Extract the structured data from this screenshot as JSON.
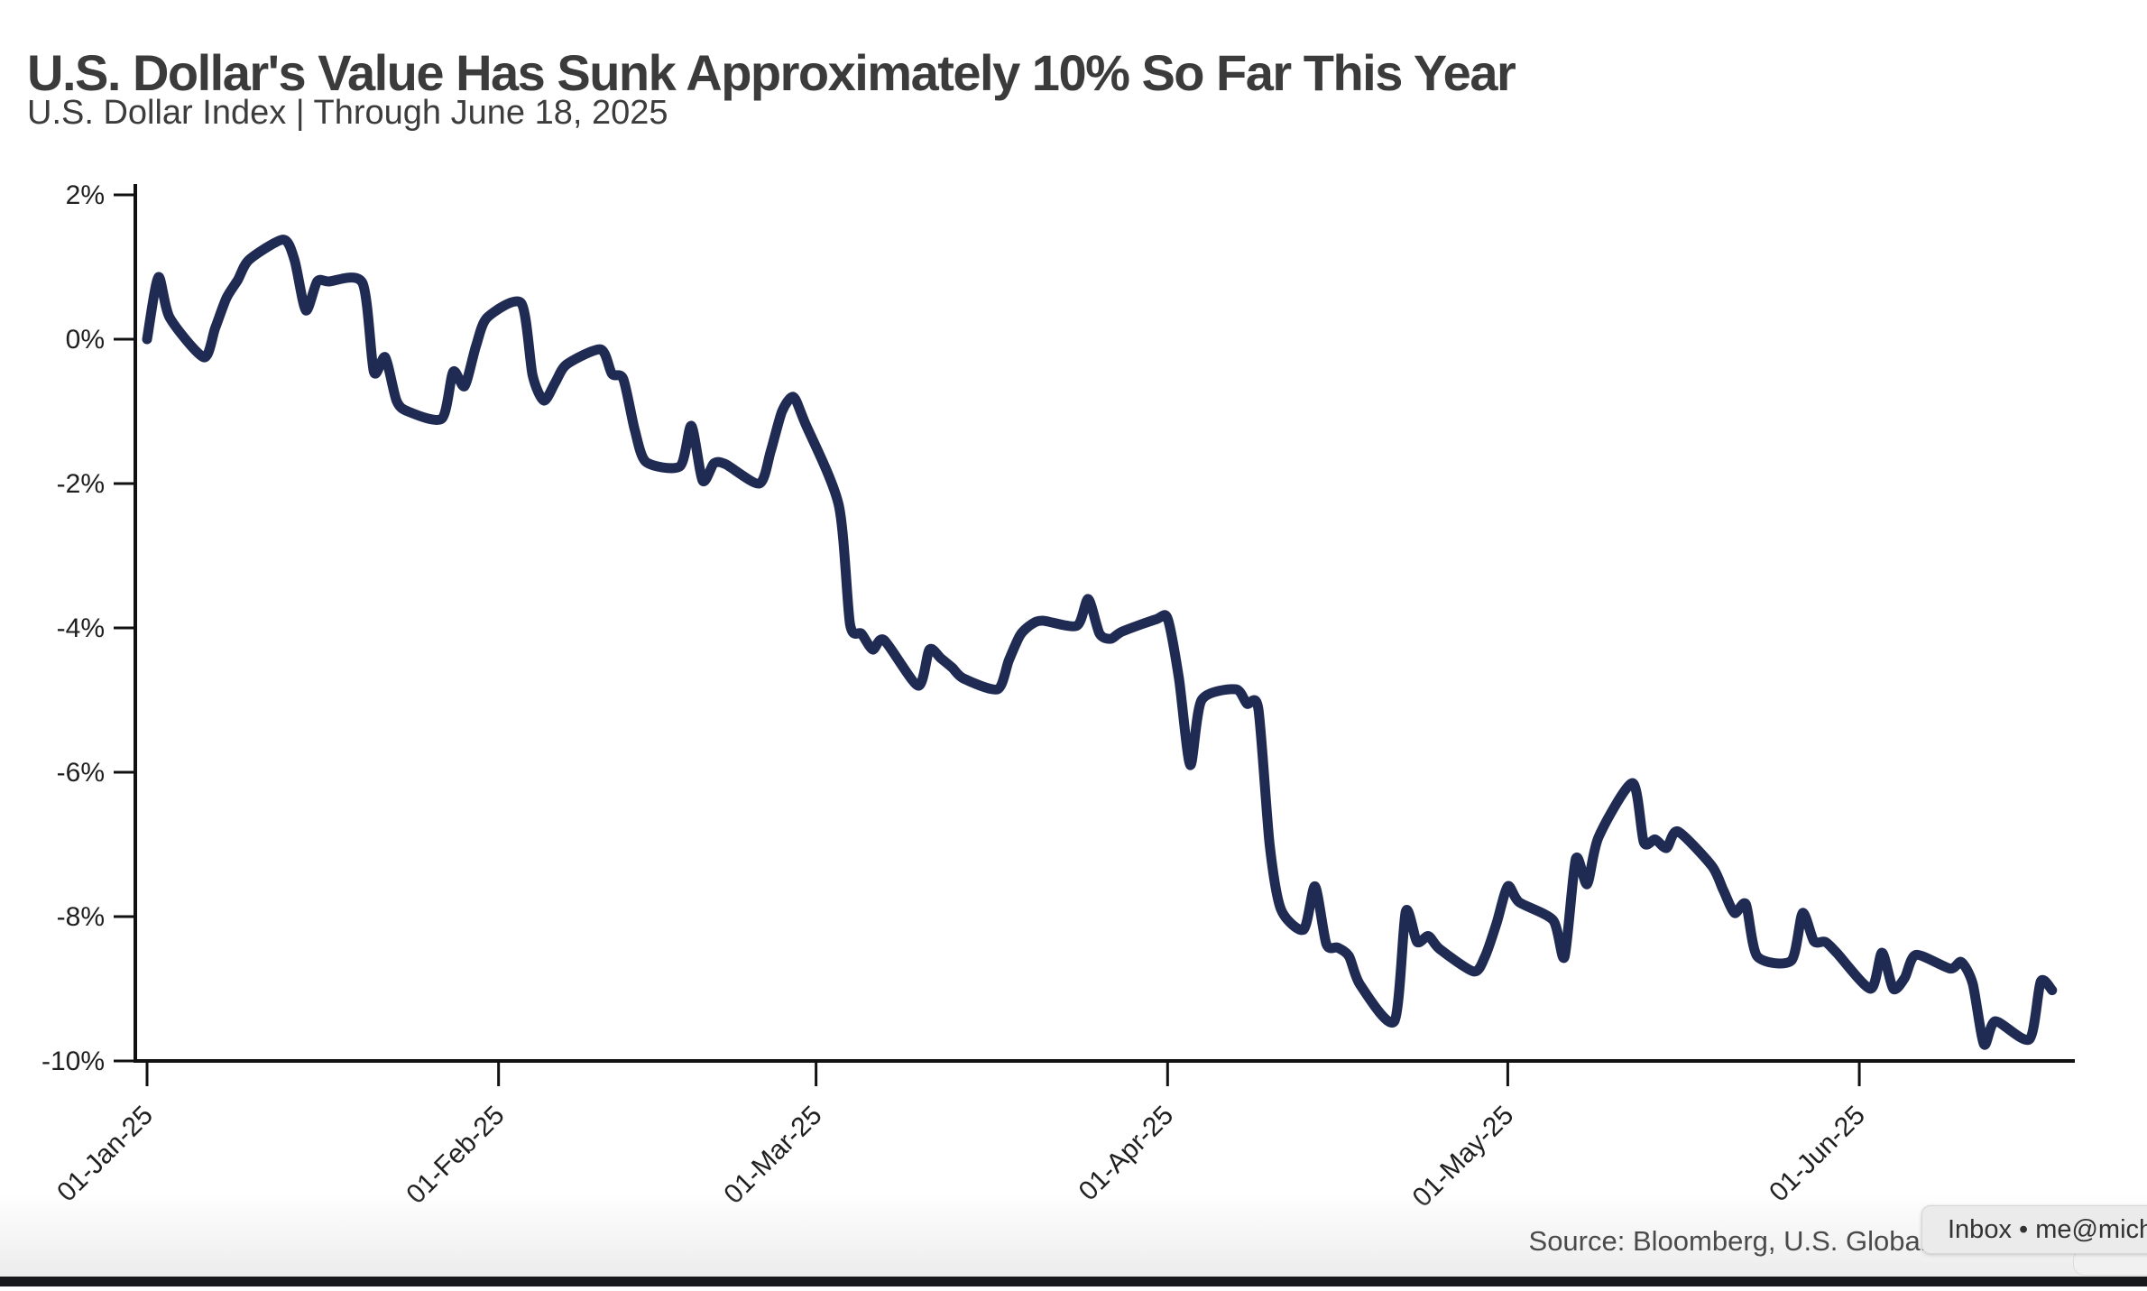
{
  "header": {
    "title": "U.S. Dollar's Value Has Sunk Approximately 10% So Far This Year",
    "subtitle": "U.S. Dollar Index | Through June 18, 2025"
  },
  "footer": {
    "source": "Source: Bloomberg, U.S. Global Investors"
  },
  "notification": {
    "text": "Inbox • me@mich",
    "bg": "#ebebeb",
    "text_color": "#333333"
  },
  "colors": {
    "line": "#202b54",
    "axis": "#111111",
    "tick_text": "#1f1f1f",
    "title_text": "#3b3b3b",
    "source_text": "#4a4a4a",
    "bottom_bar": "#17181c"
  },
  "chart_data": {
    "type": "line",
    "title": "U.S. Dollar's Value Has Sunk Approximately 10% So Far This Year",
    "subtitle": "U.S. Dollar Index | Through June 18, 2025",
    "source": "Source: Bloomberg, U.S. Global Investors",
    "grid": false,
    "legend": "none",
    "x_axis": {
      "ticks": [
        {
          "label": "01-Jan-25",
          "day": 0
        },
        {
          "label": "01-Feb-25",
          "day": 31
        },
        {
          "label": "01-Mar-25",
          "day": 59
        },
        {
          "label": "01-Apr-25",
          "day": 90
        },
        {
          "label": "01-May-25",
          "day": 120
        },
        {
          "label": "01-Jun-25",
          "day": 151
        }
      ],
      "label_rotation_deg": -45
    },
    "y_axis": {
      "unit": "%",
      "ylim": [
        -10,
        2
      ],
      "ticks": [
        {
          "label": "2%",
          "value": 2
        },
        {
          "label": "0%",
          "value": 0
        },
        {
          "label": "-2%",
          "value": -2
        },
        {
          "label": "-4%",
          "value": -4
        },
        {
          "label": "-6%",
          "value": -6
        },
        {
          "label": "-8%",
          "value": -8
        },
        {
          "label": "-10%",
          "value": -10
        }
      ]
    },
    "series": [
      {
        "name": "U.S. Dollar Index",
        "points": [
          [
            "01-Jan-25",
            0,
            0.0
          ],
          [
            "02-Jan-25",
            1,
            0.86
          ],
          [
            "03-Jan-25",
            2,
            0.3
          ],
          [
            "06-Jan-25",
            5,
            -0.25
          ],
          [
            "07-Jan-25",
            6,
            0.15
          ],
          [
            "08-Jan-25",
            7,
            0.57
          ],
          [
            "09-Jan-25",
            8,
            0.82
          ],
          [
            "10-Jan-25",
            9,
            1.1
          ],
          [
            "13-Jan-25",
            12,
            1.38
          ],
          [
            "14-Jan-25",
            13,
            1.1
          ],
          [
            "15-Jan-25",
            14,
            0.4
          ],
          [
            "16-Jan-25",
            15,
            0.8
          ],
          [
            "17-Jan-25",
            16,
            0.8
          ],
          [
            "20-Jan-25",
            19,
            0.78
          ],
          [
            "21-Jan-25",
            20,
            -0.45
          ],
          [
            "22-Jan-25",
            21,
            -0.25
          ],
          [
            "23-Jan-25",
            22,
            -0.85
          ],
          [
            "24-Jan-25",
            23,
            -1.0
          ],
          [
            "27-Jan-25",
            26,
            -1.1
          ],
          [
            "28-Jan-25",
            27,
            -0.45
          ],
          [
            "29-Jan-25",
            28,
            -0.65
          ],
          [
            "30-Jan-25",
            29,
            -0.1
          ],
          [
            "31-Jan-25",
            30,
            0.3
          ],
          [
            "03-Feb-25",
            33,
            0.5
          ],
          [
            "04-Feb-25",
            34,
            -0.5
          ],
          [
            "05-Feb-25",
            35,
            -0.85
          ],
          [
            "06-Feb-25",
            36,
            -0.6
          ],
          [
            "07-Feb-25",
            37,
            -0.35
          ],
          [
            "10-Feb-25",
            40,
            -0.14
          ],
          [
            "11-Feb-25",
            41,
            -0.48
          ],
          [
            "12-Feb-25",
            42,
            -0.55
          ],
          [
            "13-Feb-25",
            43,
            -1.25
          ],
          [
            "14-Feb-25",
            44,
            -1.7
          ],
          [
            "17-Feb-25",
            47,
            -1.76
          ],
          [
            "18-Feb-25",
            48,
            -1.2
          ],
          [
            "19-Feb-25",
            49,
            -1.96
          ],
          [
            "20-Feb-25",
            50,
            -1.72
          ],
          [
            "21-Feb-25",
            51,
            -1.73
          ],
          [
            "24-Feb-25",
            54,
            -2.0
          ],
          [
            "25-Feb-25",
            55,
            -1.55
          ],
          [
            "26-Feb-25",
            56,
            -1.0
          ],
          [
            "27-Feb-25",
            57,
            -0.8
          ],
          [
            "28-Feb-25",
            58,
            -1.15
          ],
          [
            "03-Mar-25",
            61,
            -2.3
          ],
          [
            "04-Mar-25",
            62,
            -3.95
          ],
          [
            "05-Mar-25",
            63,
            -4.08
          ],
          [
            "06-Mar-25",
            64,
            -4.3
          ],
          [
            "07-Mar-25",
            65,
            -4.17
          ],
          [
            "10-Mar-25",
            68,
            -4.8
          ],
          [
            "11-Mar-25",
            69,
            -4.3
          ],
          [
            "12-Mar-25",
            70,
            -4.42
          ],
          [
            "13-Mar-25",
            71,
            -4.55
          ],
          [
            "14-Mar-25",
            72,
            -4.7
          ],
          [
            "17-Mar-25",
            75,
            -4.85
          ],
          [
            "18-Mar-25",
            76,
            -4.45
          ],
          [
            "19-Mar-25",
            77,
            -4.1
          ],
          [
            "20-Mar-25",
            78,
            -3.95
          ],
          [
            "21-Mar-25",
            79,
            -3.9
          ],
          [
            "24-Mar-25",
            82,
            -3.97
          ],
          [
            "25-Mar-25",
            83,
            -3.6
          ],
          [
            "26-Mar-25",
            84,
            -4.08
          ],
          [
            "27-Mar-25",
            85,
            -4.15
          ],
          [
            "28-Mar-25",
            86,
            -4.05
          ],
          [
            "31-Mar-25",
            89,
            -3.88
          ],
          [
            "01-Apr-25",
            90,
            -3.87
          ],
          [
            "02-Apr-25",
            91,
            -4.7
          ],
          [
            "03-Apr-25",
            92,
            -5.9
          ],
          [
            "04-Apr-25",
            93,
            -5.0
          ],
          [
            "07-Apr-25",
            96,
            -4.85
          ],
          [
            "08-Apr-25",
            97,
            -5.05
          ],
          [
            "09-Apr-25",
            98,
            -5.12
          ],
          [
            "10-Apr-25",
            99,
            -7.0
          ],
          [
            "11-Apr-25",
            100,
            -7.9
          ],
          [
            "11-Apr-25",
            102,
            -8.18
          ],
          [
            "14-Apr-25",
            103,
            -7.58
          ],
          [
            "15-Apr-25",
            104,
            -8.38
          ],
          [
            "16-Apr-25",
            105,
            -8.43
          ],
          [
            "17-Apr-25",
            106,
            -8.55
          ],
          [
            "18-Apr-25",
            107,
            -8.95
          ],
          [
            "21-Apr-25",
            110,
            -9.45
          ],
          [
            "22-Apr-25",
            111,
            -7.93
          ],
          [
            "23-Apr-25",
            112,
            -8.35
          ],
          [
            "24-Apr-25",
            113,
            -8.27
          ],
          [
            "25-Apr-25",
            114,
            -8.45
          ],
          [
            "28-Apr-25",
            117,
            -8.76
          ],
          [
            "29-Apr-25",
            118,
            -8.55
          ],
          [
            "30-Apr-25",
            119,
            -8.1
          ],
          [
            "01-May-25",
            120,
            -7.58
          ],
          [
            "02-May-25",
            121,
            -7.8
          ],
          [
            "05-May-25",
            124,
            -8.05
          ],
          [
            "06-May-25",
            125,
            -8.56
          ],
          [
            "07-May-25",
            126,
            -7.2
          ],
          [
            "08-May-25",
            127,
            -7.55
          ],
          [
            "09-May-25",
            128,
            -6.9
          ],
          [
            "12-May-25",
            131,
            -6.15
          ],
          [
            "13-May-25",
            132,
            -6.97
          ],
          [
            "14-May-25",
            133,
            -6.93
          ],
          [
            "15-May-25",
            134,
            -7.05
          ],
          [
            "16-May-25",
            135,
            -6.82
          ],
          [
            "19-May-25",
            138,
            -7.3
          ],
          [
            "20-May-25",
            139,
            -7.63
          ],
          [
            "21-May-25",
            140,
            -7.95
          ],
          [
            "22-May-25",
            141,
            -7.83
          ],
          [
            "23-May-25",
            142,
            -8.55
          ],
          [
            "26-May-25",
            145,
            -8.61
          ],
          [
            "27-May-25",
            146,
            -7.95
          ],
          [
            "28-May-25",
            147,
            -8.34
          ],
          [
            "29-May-25",
            148,
            -8.35
          ],
          [
            "30-May-25",
            149,
            -8.5
          ],
          [
            "02-Jun-25",
            152,
            -9.0
          ],
          [
            "03-Jun-25",
            153,
            -8.5
          ],
          [
            "04-Jun-25",
            154,
            -9.0
          ],
          [
            "05-Jun-25",
            155,
            -8.85
          ],
          [
            "06-Jun-25",
            156,
            -8.53
          ],
          [
            "09-Jun-25",
            159,
            -8.72
          ],
          [
            "10-Jun-25",
            160,
            -8.63
          ],
          [
            "11-Jun-25",
            161,
            -8.93
          ],
          [
            "12-Jun-25",
            162,
            -9.77
          ],
          [
            "13-Jun-25",
            163,
            -9.45
          ],
          [
            "16-Jun-25",
            166,
            -9.7
          ],
          [
            "17-Jun-25",
            167,
            -8.9
          ],
          [
            "18-Jun-25",
            168,
            -9.02
          ]
        ]
      }
    ]
  }
}
